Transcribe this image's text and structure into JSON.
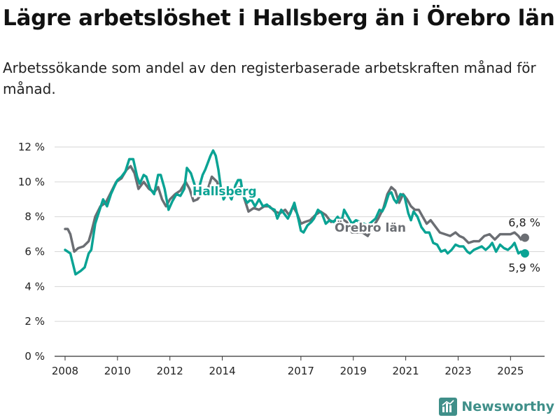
{
  "chart_data": {
    "type": "line",
    "title": "Lägre arbetslöshet i Hallsberg än i Örebro län",
    "subtitle": "Arbetssökande som andel av den registerbaserade arbetskraften månad för månad.",
    "ylim": [
      0,
      12
    ],
    "xlim": [
      2007.6,
      2026.3
    ],
    "y_ticks": [
      0,
      2,
      4,
      6,
      8,
      10,
      12
    ],
    "y_tick_labels": [
      "0 %",
      "2 %",
      "4 %",
      "6 %",
      "8 %",
      "10 %",
      "12 %"
    ],
    "x_ticks": [
      2008,
      2010,
      2012,
      2014,
      2017,
      2019,
      2021,
      2023,
      2025
    ],
    "x_tick_labels": [
      "2008",
      "2010",
      "2012",
      "2014",
      "2017",
      "2019",
      "2021",
      "2023",
      "2025"
    ],
    "grid": "horizontal",
    "series": [
      {
        "name": "Hallsberg",
        "color": "#0aa394",
        "end_label": "5,9 %",
        "points": [
          [
            2008.0,
            6.1
          ],
          [
            2008.2,
            5.9
          ],
          [
            2008.4,
            4.7
          ],
          [
            2008.6,
            4.9
          ],
          [
            2008.75,
            5.1
          ],
          [
            2008.9,
            5.9
          ],
          [
            2009.0,
            6.1
          ],
          [
            2009.15,
            7.6
          ],
          [
            2009.3,
            8.3
          ],
          [
            2009.45,
            9.0
          ],
          [
            2009.6,
            8.6
          ],
          [
            2009.75,
            9.3
          ],
          [
            2009.9,
            9.8
          ],
          [
            2010.0,
            10.1
          ],
          [
            2010.15,
            10.3
          ],
          [
            2010.3,
            10.6
          ],
          [
            2010.45,
            11.3
          ],
          [
            2010.6,
            11.3
          ],
          [
            2010.75,
            10.3
          ],
          [
            2010.85,
            9.9
          ],
          [
            2011.0,
            10.4
          ],
          [
            2011.1,
            10.3
          ],
          [
            2011.25,
            9.6
          ],
          [
            2011.4,
            9.3
          ],
          [
            2011.55,
            10.4
          ],
          [
            2011.65,
            10.4
          ],
          [
            2011.8,
            9.6
          ],
          [
            2011.95,
            8.4
          ],
          [
            2012.1,
            8.9
          ],
          [
            2012.25,
            9.3
          ],
          [
            2012.4,
            9.2
          ],
          [
            2012.55,
            9.6
          ],
          [
            2012.65,
            10.8
          ],
          [
            2012.8,
            10.5
          ],
          [
            2012.95,
            9.8
          ],
          [
            2013.1,
            9.6
          ],
          [
            2013.25,
            10.4
          ],
          [
            2013.35,
            10.7
          ],
          [
            2013.45,
            11.1
          ],
          [
            2013.55,
            11.5
          ],
          [
            2013.65,
            11.8
          ],
          [
            2013.75,
            11.5
          ],
          [
            2013.85,
            10.7
          ],
          [
            2013.95,
            9.6
          ],
          [
            2014.05,
            9.0
          ],
          [
            2014.2,
            9.4
          ],
          [
            2014.35,
            9.0
          ],
          [
            2014.5,
            9.8
          ],
          [
            2014.6,
            10.1
          ],
          [
            2014.7,
            10.1
          ],
          [
            2014.8,
            9.2
          ],
          [
            2014.95,
            8.8
          ],
          [
            2015.1,
            9.0
          ],
          [
            2015.25,
            8.6
          ],
          [
            2015.4,
            9.0
          ],
          [
            2015.55,
            8.6
          ],
          [
            2015.7,
            8.7
          ],
          [
            2015.85,
            8.5
          ],
          [
            2016.0,
            8.4
          ],
          [
            2016.1,
            7.9
          ],
          [
            2016.25,
            8.4
          ],
          [
            2016.4,
            8.1
          ],
          [
            2016.5,
            7.9
          ],
          [
            2016.6,
            8.2
          ],
          [
            2016.75,
            8.8
          ],
          [
            2016.9,
            7.9
          ],
          [
            2017.0,
            7.2
          ],
          [
            2017.1,
            7.1
          ],
          [
            2017.25,
            7.5
          ],
          [
            2017.4,
            7.7
          ],
          [
            2017.5,
            7.9
          ],
          [
            2017.65,
            8.4
          ],
          [
            2017.8,
            8.2
          ],
          [
            2017.95,
            7.6
          ],
          [
            2018.1,
            7.8
          ],
          [
            2018.25,
            7.7
          ],
          [
            2018.4,
            8.0
          ],
          [
            2018.55,
            7.7
          ],
          [
            2018.65,
            8.4
          ],
          [
            2018.8,
            8.0
          ],
          [
            2018.95,
            7.6
          ],
          [
            2019.1,
            7.8
          ],
          [
            2019.25,
            7.7
          ],
          [
            2019.4,
            7.6
          ],
          [
            2019.55,
            7.5
          ],
          [
            2019.7,
            7.7
          ],
          [
            2019.85,
            7.9
          ],
          [
            2020.0,
            8.4
          ],
          [
            2020.1,
            8.3
          ],
          [
            2020.2,
            8.6
          ],
          [
            2020.35,
            9.3
          ],
          [
            2020.45,
            9.4
          ],
          [
            2020.55,
            9.0
          ],
          [
            2020.65,
            8.8
          ],
          [
            2020.8,
            9.3
          ],
          [
            2020.95,
            9.2
          ],
          [
            2021.1,
            8.2
          ],
          [
            2021.2,
            7.8
          ],
          [
            2021.3,
            8.3
          ],
          [
            2021.45,
            8.0
          ],
          [
            2021.6,
            7.4
          ],
          [
            2021.75,
            7.1
          ],
          [
            2021.9,
            7.1
          ],
          [
            2022.05,
            6.5
          ],
          [
            2022.2,
            6.4
          ],
          [
            2022.35,
            6.0
          ],
          [
            2022.5,
            6.1
          ],
          [
            2022.6,
            5.9
          ],
          [
            2022.75,
            6.1
          ],
          [
            2022.9,
            6.4
          ],
          [
            2023.05,
            6.3
          ],
          [
            2023.2,
            6.3
          ],
          [
            2023.35,
            6.0
          ],
          [
            2023.45,
            5.9
          ],
          [
            2023.6,
            6.1
          ],
          [
            2023.75,
            6.2
          ],
          [
            2023.9,
            6.3
          ],
          [
            2024.05,
            6.1
          ],
          [
            2024.2,
            6.3
          ],
          [
            2024.3,
            6.5
          ],
          [
            2024.45,
            6.0
          ],
          [
            2024.6,
            6.4
          ],
          [
            2024.75,
            6.2
          ],
          [
            2024.9,
            6.1
          ],
          [
            2025.05,
            6.3
          ],
          [
            2025.15,
            6.5
          ],
          [
            2025.3,
            5.9
          ],
          [
            2025.4,
            6.0
          ],
          [
            2025.5,
            5.9
          ],
          [
            2025.55,
            5.9
          ]
        ]
      },
      {
        "name": "Örebro län",
        "color": "#6b6e73",
        "end_label": "6,8 %",
        "points": [
          [
            2008.0,
            7.3
          ],
          [
            2008.1,
            7.3
          ],
          [
            2008.2,
            7.0
          ],
          [
            2008.35,
            6.0
          ],
          [
            2008.5,
            6.2
          ],
          [
            2008.7,
            6.3
          ],
          [
            2008.9,
            6.6
          ],
          [
            2009.0,
            7.1
          ],
          [
            2009.15,
            8.0
          ],
          [
            2009.35,
            8.6
          ],
          [
            2009.55,
            8.8
          ],
          [
            2009.75,
            9.4
          ],
          [
            2009.95,
            10.0
          ],
          [
            2010.15,
            10.2
          ],
          [
            2010.35,
            10.7
          ],
          [
            2010.5,
            10.9
          ],
          [
            2010.65,
            10.5
          ],
          [
            2010.8,
            9.6
          ],
          [
            2011.0,
            10.0
          ],
          [
            2011.2,
            9.6
          ],
          [
            2011.4,
            9.4
          ],
          [
            2011.55,
            9.7
          ],
          [
            2011.7,
            9.0
          ],
          [
            2011.85,
            8.6
          ],
          [
            2012.0,
            9.0
          ],
          [
            2012.2,
            9.3
          ],
          [
            2012.4,
            9.5
          ],
          [
            2012.6,
            10.0
          ],
          [
            2012.75,
            9.6
          ],
          [
            2012.9,
            8.9
          ],
          [
            2013.05,
            9.0
          ],
          [
            2013.25,
            9.4
          ],
          [
            2013.45,
            9.6
          ],
          [
            2013.6,
            10.3
          ],
          [
            2013.8,
            10.0
          ],
          [
            2013.95,
            9.3
          ],
          [
            2014.1,
            9.2
          ],
          [
            2014.3,
            9.4
          ],
          [
            2014.5,
            9.6
          ],
          [
            2014.7,
            9.7
          ],
          [
            2014.85,
            9.0
          ],
          [
            2015.0,
            8.3
          ],
          [
            2015.2,
            8.5
          ],
          [
            2015.4,
            8.4
          ],
          [
            2015.6,
            8.6
          ],
          [
            2015.8,
            8.6
          ],
          [
            2016.0,
            8.3
          ],
          [
            2016.2,
            8.2
          ],
          [
            2016.4,
            8.4
          ],
          [
            2016.55,
            8.1
          ],
          [
            2016.7,
            8.6
          ],
          [
            2016.85,
            8.2
          ],
          [
            2017.0,
            7.6
          ],
          [
            2017.15,
            7.7
          ],
          [
            2017.35,
            7.8
          ],
          [
            2017.55,
            8.1
          ],
          [
            2017.75,
            8.3
          ],
          [
            2017.95,
            8.1
          ],
          [
            2018.15,
            7.7
          ],
          [
            2018.35,
            7.8
          ],
          [
            2018.55,
            7.9
          ],
          [
            2018.75,
            7.7
          ],
          [
            2018.95,
            7.1
          ],
          [
            2019.15,
            7.1
          ],
          [
            2019.35,
            7.1
          ],
          [
            2019.55,
            6.9
          ],
          [
            2019.75,
            7.4
          ],
          [
            2019.95,
            7.9
          ],
          [
            2020.15,
            8.5
          ],
          [
            2020.3,
            9.3
          ],
          [
            2020.45,
            9.7
          ],
          [
            2020.6,
            9.5
          ],
          [
            2020.75,
            8.8
          ],
          [
            2020.9,
            9.3
          ],
          [
            2021.05,
            9.0
          ],
          [
            2021.2,
            8.6
          ],
          [
            2021.35,
            8.4
          ],
          [
            2021.5,
            8.4
          ],
          [
            2021.65,
            8.0
          ],
          [
            2021.8,
            7.6
          ],
          [
            2021.95,
            7.8
          ],
          [
            2022.1,
            7.5
          ],
          [
            2022.3,
            7.1
          ],
          [
            2022.5,
            7.0
          ],
          [
            2022.7,
            6.9
          ],
          [
            2022.9,
            7.1
          ],
          [
            2023.05,
            6.9
          ],
          [
            2023.2,
            6.8
          ],
          [
            2023.4,
            6.5
          ],
          [
            2023.6,
            6.6
          ],
          [
            2023.8,
            6.6
          ],
          [
            2024.0,
            6.9
          ],
          [
            2024.2,
            7.0
          ],
          [
            2024.4,
            6.7
          ],
          [
            2024.6,
            7.0
          ],
          [
            2024.8,
            7.0
          ],
          [
            2025.0,
            7.0
          ],
          [
            2025.15,
            7.1
          ],
          [
            2025.3,
            6.9
          ],
          [
            2025.4,
            6.7
          ],
          [
            2025.5,
            6.8
          ],
          [
            2025.55,
            6.8
          ]
        ]
      }
    ]
  },
  "brand": {
    "name": "Newsworthy",
    "icon": "newsworthy-logo-icon",
    "color": "#3f8f89"
  }
}
